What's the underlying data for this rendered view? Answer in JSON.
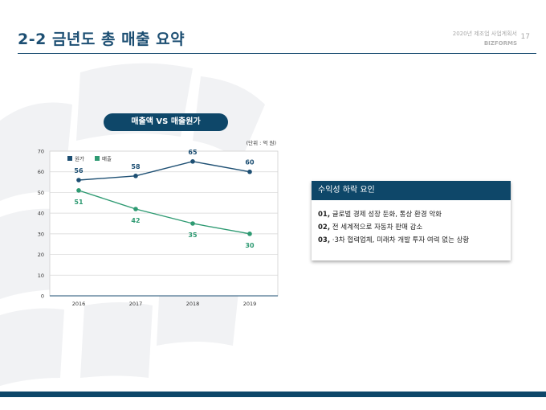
{
  "header": {
    "title": "2-2 금년도 총 매출 요약",
    "meta_line1": "2020년 제조업 사업계획서",
    "meta_line2": "BIZFORMS",
    "page_number": "17"
  },
  "chart_title": "매출액 VS 매출원가",
  "chart_data": {
    "type": "line",
    "unit_label": "(단위 : 억 원)",
    "categories": [
      "2016",
      "2017",
      "2018",
      "2019"
    ],
    "yticks": [
      0,
      10,
      20,
      30,
      40,
      50,
      60,
      70
    ],
    "ylim": [
      0,
      70
    ],
    "grid": true,
    "legend": "top-left",
    "series": [
      {
        "name": "원가",
        "values": [
          56,
          58,
          65,
          60
        ],
        "color": "#1d4f73"
      },
      {
        "name": "매출",
        "values": [
          51,
          42,
          35,
          30
        ],
        "color": "#2e9a72"
      }
    ]
  },
  "panel": {
    "title": "수익성 하락 요인",
    "items": [
      {
        "num": "01,",
        "text": "글로벌 경제 성장 둔화, 통상 환경 악화"
      },
      {
        "num": "02,",
        "text": "전 세계적으로 자동차 판매 감소"
      },
      {
        "num": "03,",
        "text": "·3차 협력업체, 미래차 개발 투자 여력 없는 상황"
      }
    ]
  }
}
